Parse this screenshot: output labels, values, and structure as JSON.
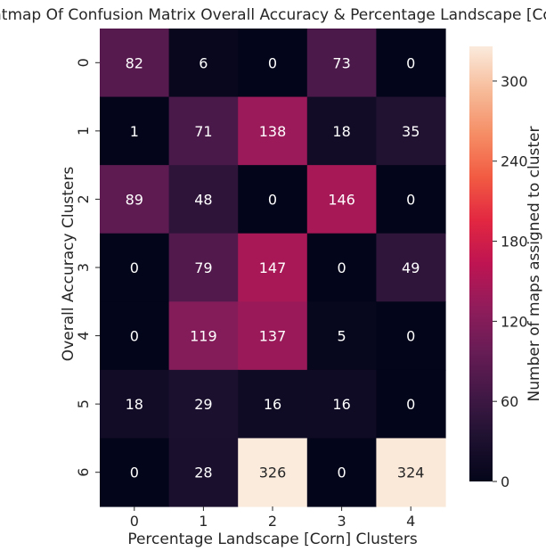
{
  "chart_data": {
    "type": "heatmap",
    "title": "Heatmap Of Confusion Matrix Overall Accuracy & Percentage Landscape [Corn]",
    "xlabel": "Percentage Landscape [Corn] Clusters",
    "ylabel": "Overall Accuracy Clusters",
    "x_categories": [
      "0",
      "1",
      "2",
      "3",
      "4"
    ],
    "y_categories": [
      "0",
      "1",
      "2",
      "3",
      "4",
      "5",
      "6"
    ],
    "values": [
      [
        82,
        6,
        0,
        73,
        0
      ],
      [
        1,
        71,
        138,
        18,
        35
      ],
      [
        89,
        48,
        0,
        146,
        0
      ],
      [
        0,
        79,
        147,
        0,
        49
      ],
      [
        0,
        119,
        137,
        5,
        0
      ],
      [
        18,
        29,
        16,
        16,
        0
      ],
      [
        0,
        28,
        326,
        0,
        324
      ]
    ],
    "colorbar": {
      "label": "Number of maps assigned to cluster",
      "ticks": [
        0,
        60,
        120,
        180,
        240,
        300
      ],
      "vmin": 0,
      "vmax": 326,
      "colormap": "rocket"
    },
    "annotation_colors": {
      "light": "#ffffff",
      "dark": "#262626"
    }
  }
}
